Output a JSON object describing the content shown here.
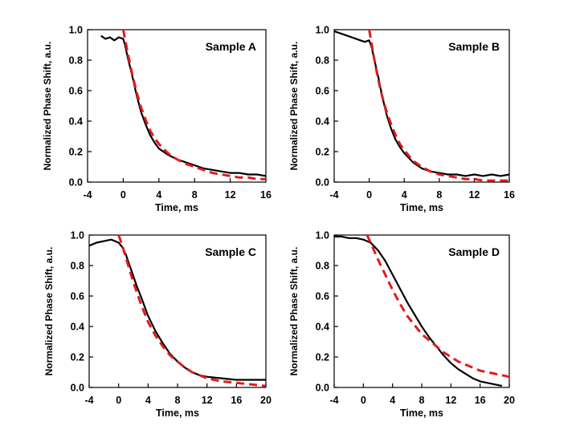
{
  "chart_data": [
    {
      "type": "line",
      "title": "Sample A",
      "xlabel": "Time, ms",
      "ylabel": "Normalized Phase Shift, a.u.",
      "xlim": [
        -4,
        16
      ],
      "ylim": [
        0,
        1
      ],
      "xticks": [
        "-4",
        "0",
        "4",
        "8",
        "12",
        "16"
      ],
      "yticks": [
        "0.0",
        "0.2",
        "0.4",
        "0.6",
        "0.8",
        "1.0"
      ],
      "grid": false,
      "series": [
        {
          "style": "measured",
          "color": "#000000",
          "x": [
            -2.5,
            -2,
            -1.5,
            -1,
            -0.5,
            0,
            0.2,
            0.5,
            1,
            1.5,
            2,
            2.5,
            3,
            3.5,
            4,
            5,
            6,
            7,
            8,
            9,
            10,
            11,
            12,
            13,
            14,
            15,
            16
          ],
          "y": [
            0.96,
            0.94,
            0.95,
            0.93,
            0.95,
            0.94,
            0.9,
            0.82,
            0.7,
            0.57,
            0.46,
            0.38,
            0.31,
            0.26,
            0.22,
            0.18,
            0.15,
            0.13,
            0.11,
            0.09,
            0.08,
            0.07,
            0.06,
            0.06,
            0.05,
            0.05,
            0.04
          ]
        },
        {
          "style": "fit",
          "color": "#e31a1c",
          "x": [
            0,
            0.5,
            1,
            1.5,
            2,
            2.5,
            3,
            3.5,
            4,
            5,
            6,
            7,
            8,
            9,
            10,
            11,
            12,
            13,
            14,
            15,
            16
          ],
          "y": [
            1.0,
            0.85,
            0.71,
            0.59,
            0.49,
            0.41,
            0.34,
            0.29,
            0.25,
            0.19,
            0.15,
            0.12,
            0.1,
            0.08,
            0.06,
            0.05,
            0.04,
            0.03,
            0.03,
            0.02,
            0.02
          ]
        }
      ]
    },
    {
      "type": "line",
      "title": "Sample B",
      "xlabel": "Time, ms",
      "ylabel": "Normalized Phase Shift, a.u.",
      "xlim": [
        -4,
        16
      ],
      "ylim": [
        0,
        1
      ],
      "xticks": [
        "-4",
        "0",
        "4",
        "8",
        "12",
        "16"
      ],
      "yticks": [
        "0.0",
        "0.2",
        "0.4",
        "0.6",
        "0.8",
        "1.0"
      ],
      "grid": false,
      "series": [
        {
          "style": "measured",
          "color": "#000000",
          "x": [
            -4,
            -3.5,
            -3,
            -2.5,
            -2,
            -1.5,
            -1,
            -0.5,
            0,
            0.3,
            0.6,
            1,
            1.5,
            2,
            2.5,
            3,
            3.5,
            4,
            5,
            6,
            7,
            8,
            9,
            10,
            11,
            12,
            13,
            14,
            15,
            16
          ],
          "y": [
            0.99,
            0.98,
            0.97,
            0.96,
            0.95,
            0.94,
            0.93,
            0.92,
            0.93,
            0.88,
            0.8,
            0.7,
            0.56,
            0.44,
            0.35,
            0.28,
            0.23,
            0.19,
            0.13,
            0.09,
            0.07,
            0.06,
            0.05,
            0.05,
            0.04,
            0.05,
            0.04,
            0.05,
            0.04,
            0.05
          ]
        },
        {
          "style": "fit",
          "color": "#e31a1c",
          "x": [
            0,
            0.5,
            1,
            1.5,
            2,
            2.5,
            3,
            3.5,
            4,
            5,
            6,
            7,
            8,
            9,
            10,
            11,
            12,
            13,
            14,
            15,
            16
          ],
          "y": [
            1.0,
            0.83,
            0.68,
            0.56,
            0.46,
            0.38,
            0.31,
            0.25,
            0.21,
            0.14,
            0.1,
            0.07,
            0.05,
            0.04,
            0.03,
            0.02,
            0.02,
            0.01,
            0.01,
            0.01,
            0.01
          ]
        }
      ]
    },
    {
      "type": "line",
      "title": "Sample C",
      "xlabel": "Time, ms",
      "ylabel": "Normalized Phase Shift, a.u.",
      "xlim": [
        -4,
        20
      ],
      "ylim": [
        0,
        1
      ],
      "xticks": [
        "-4",
        "0",
        "4",
        "8",
        "12",
        "16",
        "20"
      ],
      "yticks": [
        "0.0",
        "0.2",
        "0.4",
        "0.6",
        "0.8",
        "1.0"
      ],
      "grid": false,
      "series": [
        {
          "style": "measured",
          "color": "#000000",
          "x": [
            -4,
            -3,
            -2,
            -1,
            0,
            0.5,
            1,
            1.5,
            2,
            2.5,
            3,
            4,
            5,
            6,
            7,
            8,
            9,
            10,
            11,
            12,
            14,
            16,
            18,
            20
          ],
          "y": [
            0.93,
            0.95,
            0.96,
            0.97,
            0.95,
            0.92,
            0.87,
            0.8,
            0.73,
            0.66,
            0.6,
            0.47,
            0.37,
            0.29,
            0.22,
            0.17,
            0.13,
            0.1,
            0.08,
            0.07,
            0.06,
            0.05,
            0.05,
            0.05
          ]
        },
        {
          "style": "fit",
          "color": "#e31a1c",
          "x": [
            0,
            0.5,
            1,
            1.5,
            2,
            2.5,
            3,
            4,
            5,
            6,
            7,
            8,
            9,
            10,
            11,
            12,
            14,
            16,
            18,
            20
          ],
          "y": [
            1.0,
            0.93,
            0.85,
            0.77,
            0.69,
            0.62,
            0.55,
            0.43,
            0.34,
            0.27,
            0.21,
            0.17,
            0.13,
            0.1,
            0.08,
            0.06,
            0.04,
            0.03,
            0.02,
            0.01
          ]
        }
      ]
    },
    {
      "type": "line",
      "title": "Sample D",
      "xlabel": "Time, ms",
      "ylabel": "Normalized Phase Shift, a.u.",
      "xlim": [
        -4,
        20
      ],
      "ylim": [
        0,
        1
      ],
      "xticks": [
        "-4",
        "0",
        "4",
        "8",
        "12",
        "16",
        "20"
      ],
      "yticks": [
        "0.0",
        "0.2",
        "0.4",
        "0.6",
        "0.8",
        "1.0"
      ],
      "grid": false,
      "series": [
        {
          "style": "measured",
          "color": "#000000",
          "x": [
            -4,
            -3,
            -2,
            -1,
            0,
            1,
            2,
            3,
            4,
            5,
            6,
            7,
            8,
            9,
            10,
            11,
            12,
            13,
            14,
            15,
            16,
            17,
            18,
            19
          ],
          "y": [
            0.99,
            0.99,
            0.98,
            0.98,
            0.97,
            0.95,
            0.9,
            0.83,
            0.74,
            0.65,
            0.56,
            0.48,
            0.4,
            0.33,
            0.27,
            0.21,
            0.16,
            0.12,
            0.09,
            0.06,
            0.04,
            0.03,
            0.02,
            0.01
          ]
        },
        {
          "style": "fit",
          "color": "#e31a1c",
          "x": [
            0.5,
            1,
            2,
            3,
            4,
            5,
            6,
            7,
            8,
            9,
            10,
            11,
            12,
            13,
            14,
            15,
            16,
            17,
            18,
            19,
            20
          ],
          "y": [
            1.0,
            0.95,
            0.84,
            0.74,
            0.64,
            0.55,
            0.47,
            0.41,
            0.35,
            0.31,
            0.27,
            0.23,
            0.2,
            0.17,
            0.15,
            0.13,
            0.11,
            0.1,
            0.09,
            0.08,
            0.07
          ]
        }
      ]
    }
  ]
}
